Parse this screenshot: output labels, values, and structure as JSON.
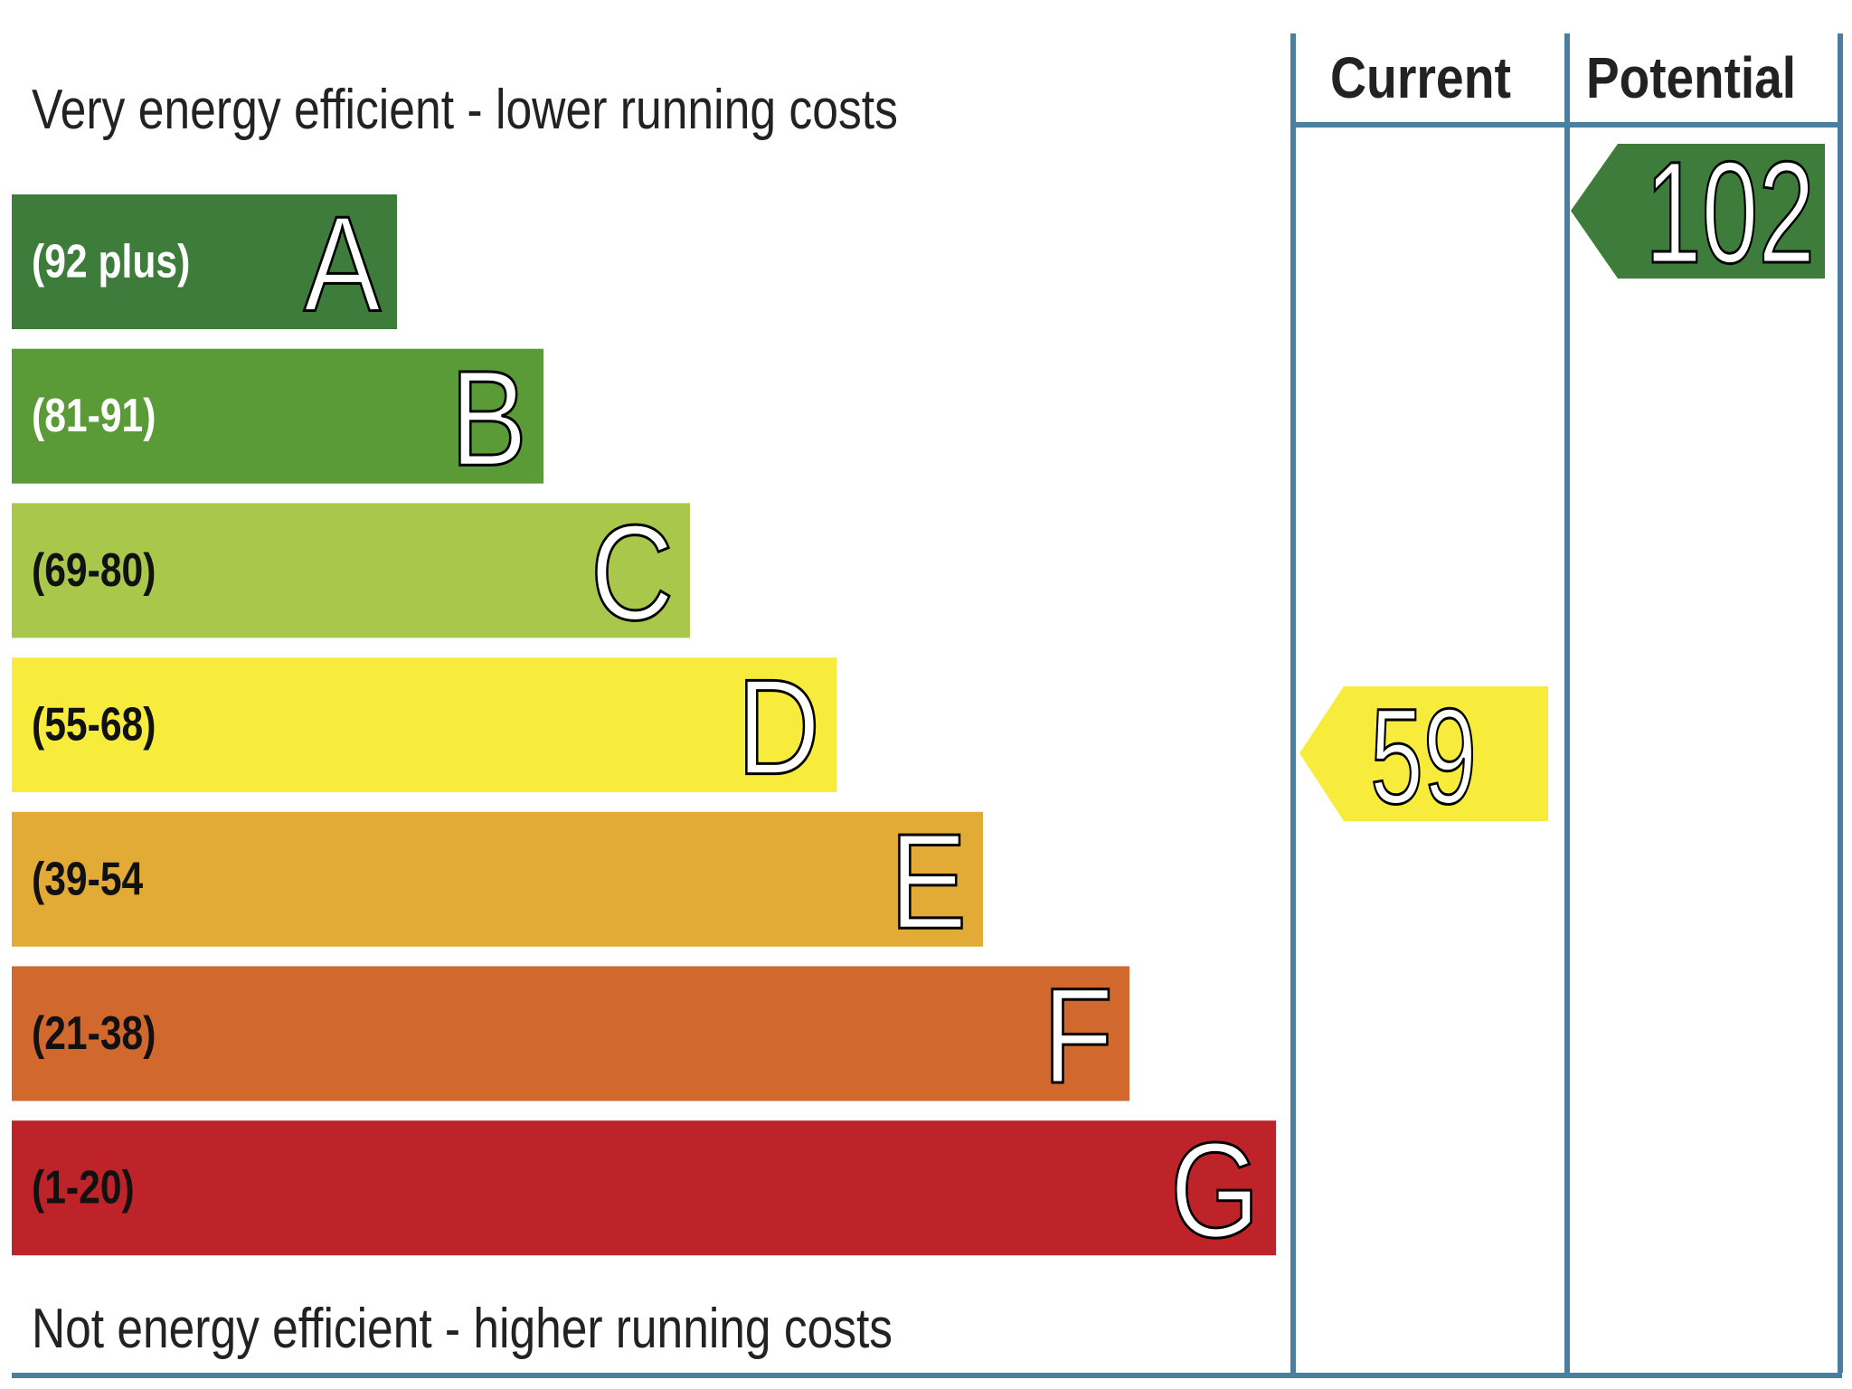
{
  "header": {
    "top_text": "Very energy efficient - lower running costs",
    "current_label": "Current",
    "potential_label": "Potential"
  },
  "bands": [
    {
      "range": "(92 plus)",
      "letter": "A",
      "color": "#3e7c3c"
    },
    {
      "range": "(81-91)",
      "letter": "B",
      "color": "#5a9b38"
    },
    {
      "range": "(69-80)",
      "letter": "C",
      "color": "#a9c84b"
    },
    {
      "range": "(55-68)",
      "letter": "D",
      "color": "#f7ec3b"
    },
    {
      "range": "(39-54",
      "letter": "E",
      "color": "#e2ab36"
    },
    {
      "range": "(21-38)",
      "letter": "F",
      "color": "#d1682d"
    },
    {
      "range": "(1-20)",
      "letter": "G",
      "color": "#bf232a"
    }
  ],
  "current": {
    "value": 59,
    "color": "#f7ec3b"
  },
  "potential": {
    "value": 102,
    "color": "#3e7c3c"
  },
  "footer": {
    "bottom_text": "Not energy efficient - higher running costs"
  }
}
